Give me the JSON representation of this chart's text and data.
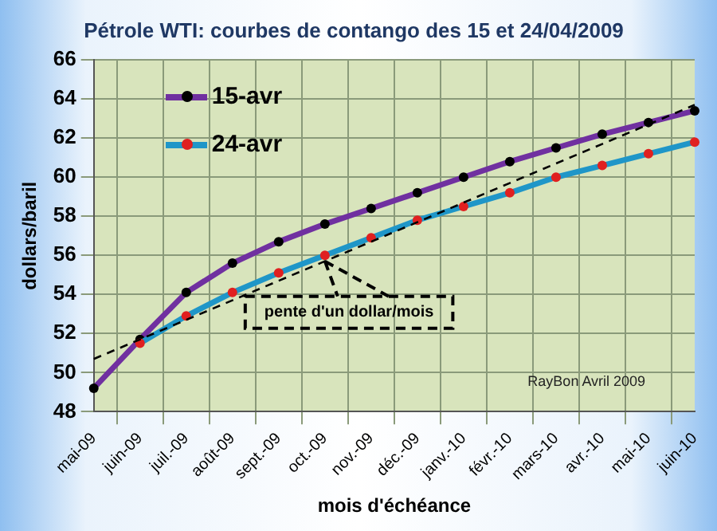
{
  "chart_data": {
    "type": "line",
    "title": "Pétrole WTI: courbes de contango des 15 et 24/04/2009",
    "xlabel": "mois d'échéance",
    "ylabel": "dollars/baril",
    "categories": [
      "mai-09",
      "juin-09",
      "juil.-09",
      "août-09",
      "sept.-09",
      "oct.-09",
      "nov.-09",
      "déc.-09",
      "janv.-10",
      "févr.-10",
      "mars-10",
      "avr.-10",
      "mai-10",
      "juin-10"
    ],
    "series": [
      {
        "name": "15-avr",
        "color": "#7030a0",
        "marker": "circle",
        "values": [
          49.2,
          51.7,
          54.1,
          55.6,
          56.7,
          57.6,
          58.4,
          59.2,
          60.0,
          60.8,
          61.5,
          62.2,
          62.8,
          63.4
        ]
      },
      {
        "name": "24-avr",
        "color": "#1f96c8",
        "marker": "circle",
        "values": [
          null,
          51.5,
          52.9,
          54.1,
          55.1,
          56.0,
          56.9,
          57.8,
          58.5,
          59.2,
          60.0,
          60.6,
          61.2,
          61.8
        ]
      },
      {
        "color": "#000000",
        "marker": "none",
        "line_style": "dashed",
        "values": [
          50.7,
          51.7,
          52.7,
          53.7,
          54.7,
          55.7,
          56.7,
          57.7,
          58.7,
          59.7,
          60.7,
          61.7,
          62.7,
          63.7
        ]
      }
    ],
    "ylim": [
      48,
      66
    ],
    "yticks": [
      48,
      50,
      52,
      54,
      56,
      58,
      60,
      62,
      64,
      66
    ],
    "grid": true,
    "legend": "top left",
    "annotations": [
      {
        "text": "pente d'un dollar/mois",
        "x": "oct.-09",
        "y": 55.7
      },
      "RayBon Avril 2009"
    ]
  }
}
